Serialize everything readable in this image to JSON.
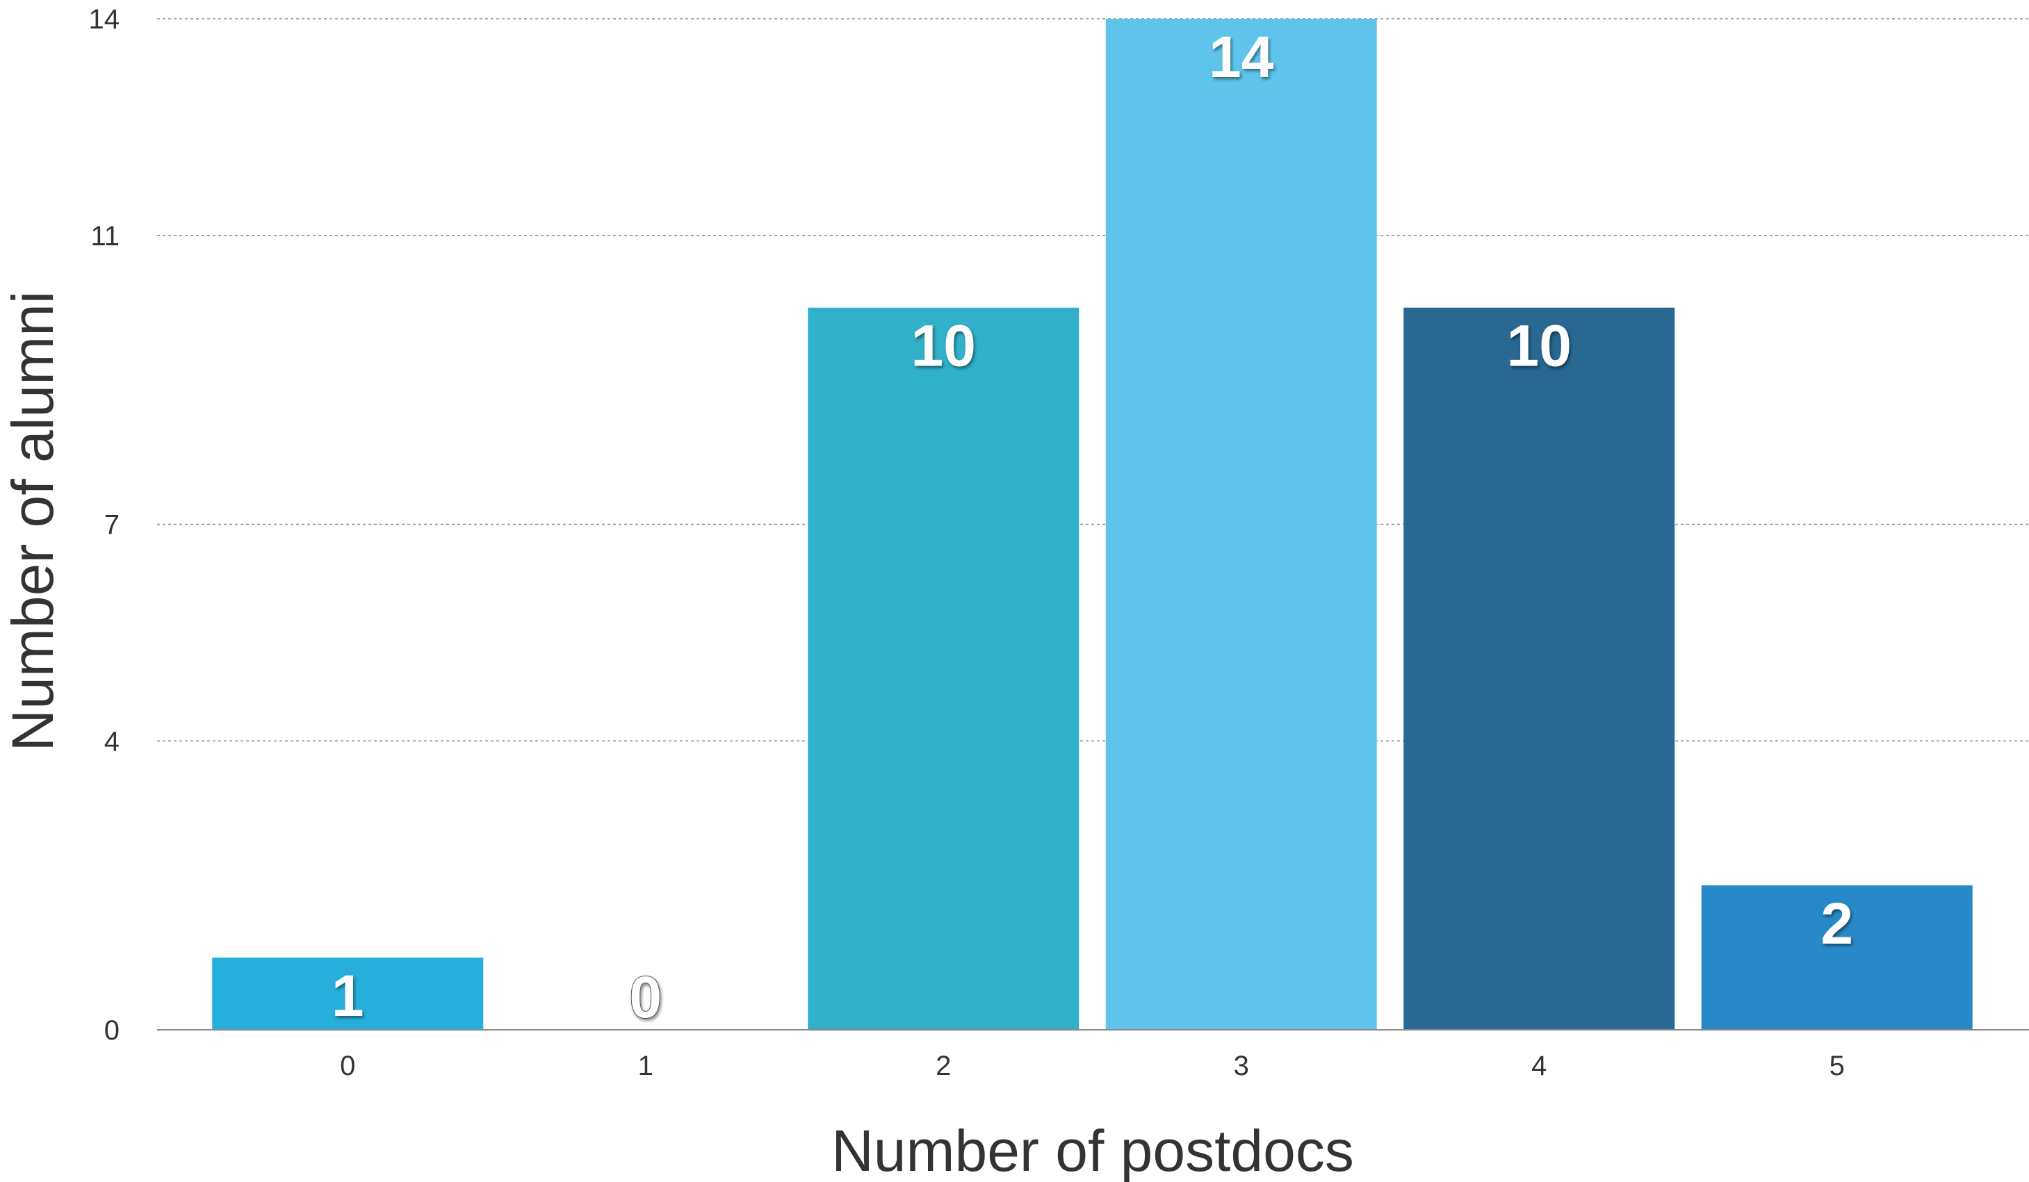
{
  "chart_data": {
    "type": "bar",
    "title": "",
    "xlabel": "Number of postdocs",
    "ylabel": "Number of alumni",
    "categories": [
      "0",
      "1",
      "2",
      "3",
      "4",
      "5"
    ],
    "values": [
      1,
      0,
      10,
      14,
      10,
      2
    ],
    "data_labels": [
      "1",
      "0",
      "10",
      "14",
      "10",
      "2"
    ],
    "bar_colors": [
      "#27afdc",
      "#27afdc",
      "#31b0c9",
      "#5ec4ec",
      "#286893",
      "#2789c8"
    ],
    "yticks": [
      0,
      4,
      7,
      11,
      14
    ],
    "ylim": [
      0,
      14
    ],
    "grid": true,
    "legend": "none"
  }
}
